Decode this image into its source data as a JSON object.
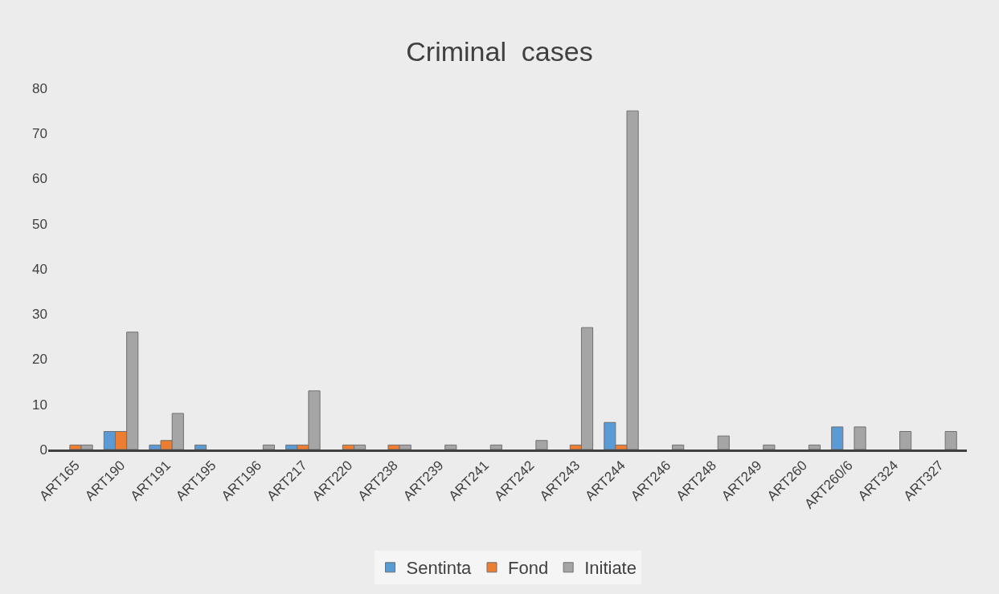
{
  "chart_data": {
    "type": "bar",
    "title": "Criminal  cases",
    "categories": [
      "ART165",
      "ART190",
      "ART191",
      "ART195",
      "ART196",
      "ART217",
      "ART220",
      "ART238",
      "ART239",
      "ART241",
      "ART242",
      "ART243",
      "ART244",
      "ART246",
      "ART248",
      "ART249",
      "ART260",
      "ART260/6",
      "ART324",
      "ART327"
    ],
    "series": [
      {
        "name": "Sentinta",
        "color": "#5b9bd5",
        "values": [
          null,
          4,
          1,
          1,
          null,
          1,
          null,
          null,
          null,
          null,
          null,
          null,
          6,
          null,
          null,
          null,
          null,
          5,
          null,
          null
        ]
      },
      {
        "name": "Fond",
        "color": "#ed7d31",
        "values": [
          1,
          4,
          2,
          null,
          null,
          1,
          1,
          1,
          null,
          null,
          null,
          1,
          1,
          null,
          null,
          null,
          null,
          null,
          null,
          null
        ]
      },
      {
        "name": "Initiate",
        "color": "#a5a5a5",
        "values": [
          1,
          26,
          8,
          null,
          1,
          13,
          1,
          1,
          1,
          1,
          2,
          27,
          75,
          1,
          3,
          1,
          1,
          5,
          4,
          4
        ]
      }
    ],
    "ylim": [
      0,
      80
    ],
    "yticks": [
      0,
      10,
      20,
      30,
      40,
      50,
      60,
      70,
      80
    ],
    "grid": false,
    "legend": "bottom"
  }
}
